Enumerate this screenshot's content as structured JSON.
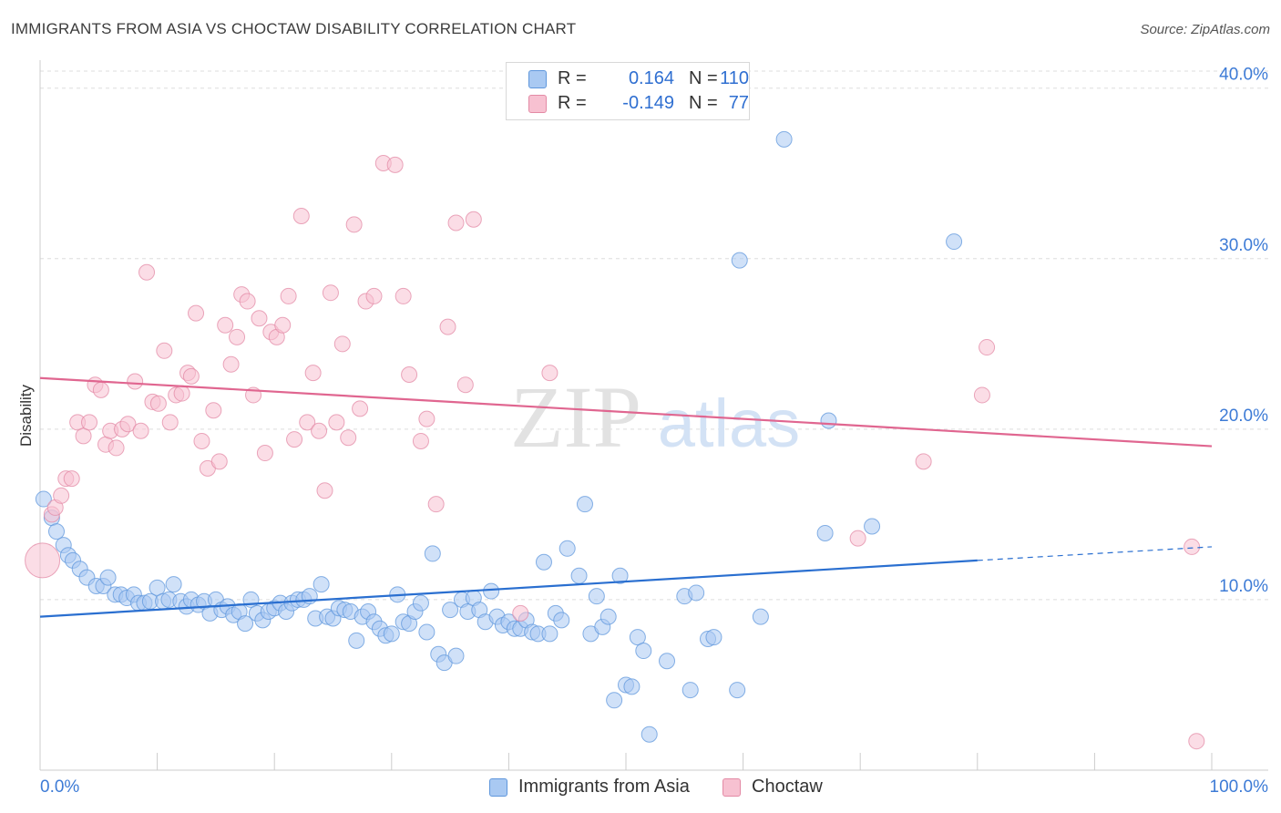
{
  "title": "IMMIGRANTS FROM ASIA VS CHOCTAW DISABILITY CORRELATION CHART",
  "source": "Source: ZipAtlas.com",
  "watermark": {
    "zip": "ZIP",
    "atlas": "atlas"
  },
  "legend": {
    "rows": [
      {
        "r_label": "R =",
        "r_value": "0.164",
        "n_label": "N =",
        "n_value": "110",
        "color": "#a9c9f2",
        "border": "#5f97dc"
      },
      {
        "r_label": "R =",
        "r_value": "-0.149",
        "n_label": "N =",
        "n_value": "77",
        "color": "#f7c1d1",
        "border": "#e38aa5"
      }
    ]
  },
  "bottom_legend": [
    {
      "label": "Immigrants from Asia",
      "color": "#a9c9f2",
      "border": "#5f97dc"
    },
    {
      "label": "Choctaw",
      "color": "#f7c1d1",
      "border": "#e38aa5"
    }
  ],
  "chart_data": {
    "type": "scatter",
    "title": "IMMIGRANTS FROM ASIA VS CHOCTAW DISABILITY CORRELATION CHART",
    "xlabel": "",
    "ylabel": "Disability",
    "xlim": [
      0,
      100
    ],
    "ylim": [
      0,
      41
    ],
    "x_tick_labels": [
      "0.0%",
      "100.0%"
    ],
    "y_ticks": [
      10,
      20,
      30,
      40
    ],
    "y_tick_labels": [
      "10.0%",
      "20.0%",
      "30.0%",
      "40.0%"
    ],
    "grid": true,
    "legend_position": "top-center",
    "series": [
      {
        "name": "Immigrants from Asia",
        "color": "#5f97dc",
        "fill": "#a9c9f2",
        "trend": {
          "x": [
            0,
            80
          ],
          "y": [
            9.0,
            12.3
          ],
          "dashed_to": [
            100,
            13.1
          ]
        },
        "points": [
          [
            0.3,
            15.9
          ],
          [
            1.0,
            14.8
          ],
          [
            1.4,
            14.0
          ],
          [
            2.0,
            13.2
          ],
          [
            2.4,
            12.6
          ],
          [
            2.8,
            12.3
          ],
          [
            3.4,
            11.8
          ],
          [
            4.0,
            11.3
          ],
          [
            4.8,
            10.8
          ],
          [
            5.4,
            10.8
          ],
          [
            5.8,
            11.3
          ],
          [
            6.4,
            10.3
          ],
          [
            6.9,
            10.3
          ],
          [
            7.4,
            10.1
          ],
          [
            8.0,
            10.3
          ],
          [
            8.4,
            9.8
          ],
          [
            8.9,
            9.8
          ],
          [
            9.4,
            9.9
          ],
          [
            10.0,
            10.7
          ],
          [
            10.5,
            9.9
          ],
          [
            11.0,
            10.0
          ],
          [
            11.4,
            10.9
          ],
          [
            12.0,
            9.9
          ],
          [
            12.5,
            9.6
          ],
          [
            12.9,
            10.0
          ],
          [
            13.5,
            9.7
          ],
          [
            14.0,
            9.9
          ],
          [
            14.5,
            9.2
          ],
          [
            15.0,
            10.0
          ],
          [
            15.5,
            9.4
          ],
          [
            16.0,
            9.6
          ],
          [
            16.5,
            9.1
          ],
          [
            17.0,
            9.3
          ],
          [
            17.5,
            8.6
          ],
          [
            18.0,
            10.0
          ],
          [
            18.5,
            9.2
          ],
          [
            19.0,
            8.8
          ],
          [
            19.5,
            9.3
          ],
          [
            20.0,
            9.5
          ],
          [
            20.5,
            9.8
          ],
          [
            21.0,
            9.3
          ],
          [
            21.5,
            9.8
          ],
          [
            22.0,
            10.0
          ],
          [
            22.5,
            10.0
          ],
          [
            23.0,
            10.2
          ],
          [
            23.5,
            8.9
          ],
          [
            24.0,
            10.9
          ],
          [
            24.5,
            9.0
          ],
          [
            25.0,
            8.9
          ],
          [
            25.5,
            9.5
          ],
          [
            26.0,
            9.4
          ],
          [
            26.5,
            9.3
          ],
          [
            27.0,
            7.6
          ],
          [
            27.5,
            9.0
          ],
          [
            28.0,
            9.3
          ],
          [
            28.5,
            8.7
          ],
          [
            29.0,
            8.3
          ],
          [
            29.5,
            7.9
          ],
          [
            30.0,
            8.0
          ],
          [
            30.5,
            10.3
          ],
          [
            31.0,
            8.7
          ],
          [
            31.5,
            8.6
          ],
          [
            32.0,
            9.3
          ],
          [
            32.5,
            9.8
          ],
          [
            33.0,
            8.1
          ],
          [
            33.5,
            12.7
          ],
          [
            34.0,
            6.8
          ],
          [
            34.5,
            6.3
          ],
          [
            35.0,
            9.4
          ],
          [
            35.5,
            6.7
          ],
          [
            36.0,
            10.0
          ],
          [
            36.5,
            9.3
          ],
          [
            37.0,
            10.1
          ],
          [
            37.5,
            9.4
          ],
          [
            38.0,
            8.7
          ],
          [
            38.5,
            10.5
          ],
          [
            39.0,
            9.0
          ],
          [
            39.5,
            8.5
          ],
          [
            40.0,
            8.7
          ],
          [
            40.5,
            8.3
          ],
          [
            41.0,
            8.3
          ],
          [
            41.5,
            8.8
          ],
          [
            42.0,
            8.1
          ],
          [
            42.5,
            8.0
          ],
          [
            43.0,
            12.2
          ],
          [
            43.5,
            8.0
          ],
          [
            44.0,
            9.2
          ],
          [
            44.5,
            8.8
          ],
          [
            45.0,
            13.0
          ],
          [
            46.0,
            11.4
          ],
          [
            46.5,
            15.6
          ],
          [
            47.0,
            8.0
          ],
          [
            47.5,
            10.2
          ],
          [
            48.0,
            8.4
          ],
          [
            48.5,
            9.0
          ],
          [
            49.0,
            4.1
          ],
          [
            49.5,
            11.4
          ],
          [
            50.0,
            5.0
          ],
          [
            50.5,
            4.9
          ],
          [
            51.0,
            7.8
          ],
          [
            51.5,
            7.0
          ],
          [
            52.0,
            2.1
          ],
          [
            53.5,
            6.4
          ],
          [
            55.0,
            10.2
          ],
          [
            55.5,
            4.7
          ],
          [
            56.0,
            10.4
          ],
          [
            57.0,
            7.7
          ],
          [
            57.5,
            7.8
          ],
          [
            59.5,
            4.7
          ],
          [
            59.7,
            29.9
          ],
          [
            61.5,
            9.0
          ],
          [
            63.5,
            37.0
          ],
          [
            67.0,
            13.9
          ],
          [
            67.3,
            20.5
          ],
          [
            71.0,
            14.3
          ],
          [
            78.0,
            31.0
          ]
        ]
      },
      {
        "name": "Choctaw",
        "color": "#e38aa5",
        "fill": "#f7c1d1",
        "trend": {
          "x": [
            0,
            100
          ],
          "y": [
            23.0,
            19.0
          ]
        },
        "points": [
          [
            0.2,
            12.3
          ],
          [
            1.0,
            15.0
          ],
          [
            1.3,
            15.4
          ],
          [
            1.8,
            16.1
          ],
          [
            2.2,
            17.1
          ],
          [
            2.7,
            17.1
          ],
          [
            3.2,
            20.4
          ],
          [
            3.7,
            19.6
          ],
          [
            4.2,
            20.4
          ],
          [
            4.7,
            22.6
          ],
          [
            5.2,
            22.3
          ],
          [
            5.6,
            19.1
          ],
          [
            6.0,
            19.9
          ],
          [
            6.5,
            18.9
          ],
          [
            7.0,
            20.0
          ],
          [
            7.5,
            20.3
          ],
          [
            8.1,
            22.8
          ],
          [
            8.6,
            19.9
          ],
          [
            9.1,
            29.2
          ],
          [
            9.6,
            21.6
          ],
          [
            10.1,
            21.5
          ],
          [
            10.6,
            24.6
          ],
          [
            11.1,
            20.4
          ],
          [
            11.6,
            22.0
          ],
          [
            12.1,
            22.1
          ],
          [
            12.6,
            23.3
          ],
          [
            12.9,
            23.1
          ],
          [
            13.3,
            26.8
          ],
          [
            13.8,
            19.3
          ],
          [
            14.3,
            17.7
          ],
          [
            14.8,
            21.1
          ],
          [
            15.3,
            18.1
          ],
          [
            15.8,
            26.1
          ],
          [
            16.3,
            23.8
          ],
          [
            16.8,
            25.4
          ],
          [
            17.2,
            27.9
          ],
          [
            17.7,
            27.5
          ],
          [
            18.2,
            22.0
          ],
          [
            18.7,
            26.5
          ],
          [
            19.2,
            18.6
          ],
          [
            19.7,
            25.7
          ],
          [
            20.2,
            25.4
          ],
          [
            20.7,
            26.1
          ],
          [
            21.2,
            27.8
          ],
          [
            21.7,
            19.4
          ],
          [
            22.3,
            32.5
          ],
          [
            22.8,
            20.4
          ],
          [
            23.3,
            23.3
          ],
          [
            23.8,
            19.9
          ],
          [
            24.3,
            16.4
          ],
          [
            24.8,
            28.0
          ],
          [
            25.3,
            20.4
          ],
          [
            25.8,
            25.0
          ],
          [
            26.3,
            19.5
          ],
          [
            26.8,
            32.0
          ],
          [
            27.3,
            21.2
          ],
          [
            27.8,
            27.5
          ],
          [
            28.5,
            27.8
          ],
          [
            29.3,
            35.6
          ],
          [
            30.3,
            35.5
          ],
          [
            31.0,
            27.8
          ],
          [
            31.5,
            23.2
          ],
          [
            32.5,
            19.3
          ],
          [
            33.0,
            20.6
          ],
          [
            33.8,
            15.6
          ],
          [
            34.8,
            26.0
          ],
          [
            35.5,
            32.1
          ],
          [
            36.3,
            22.6
          ],
          [
            37.0,
            32.3
          ],
          [
            41.0,
            9.2
          ],
          [
            43.5,
            23.3
          ],
          [
            69.8,
            13.6
          ],
          [
            75.4,
            18.1
          ],
          [
            80.4,
            22.0
          ],
          [
            80.8,
            24.8
          ],
          [
            98.3,
            13.1
          ],
          [
            98.7,
            1.7
          ]
        ]
      }
    ]
  }
}
